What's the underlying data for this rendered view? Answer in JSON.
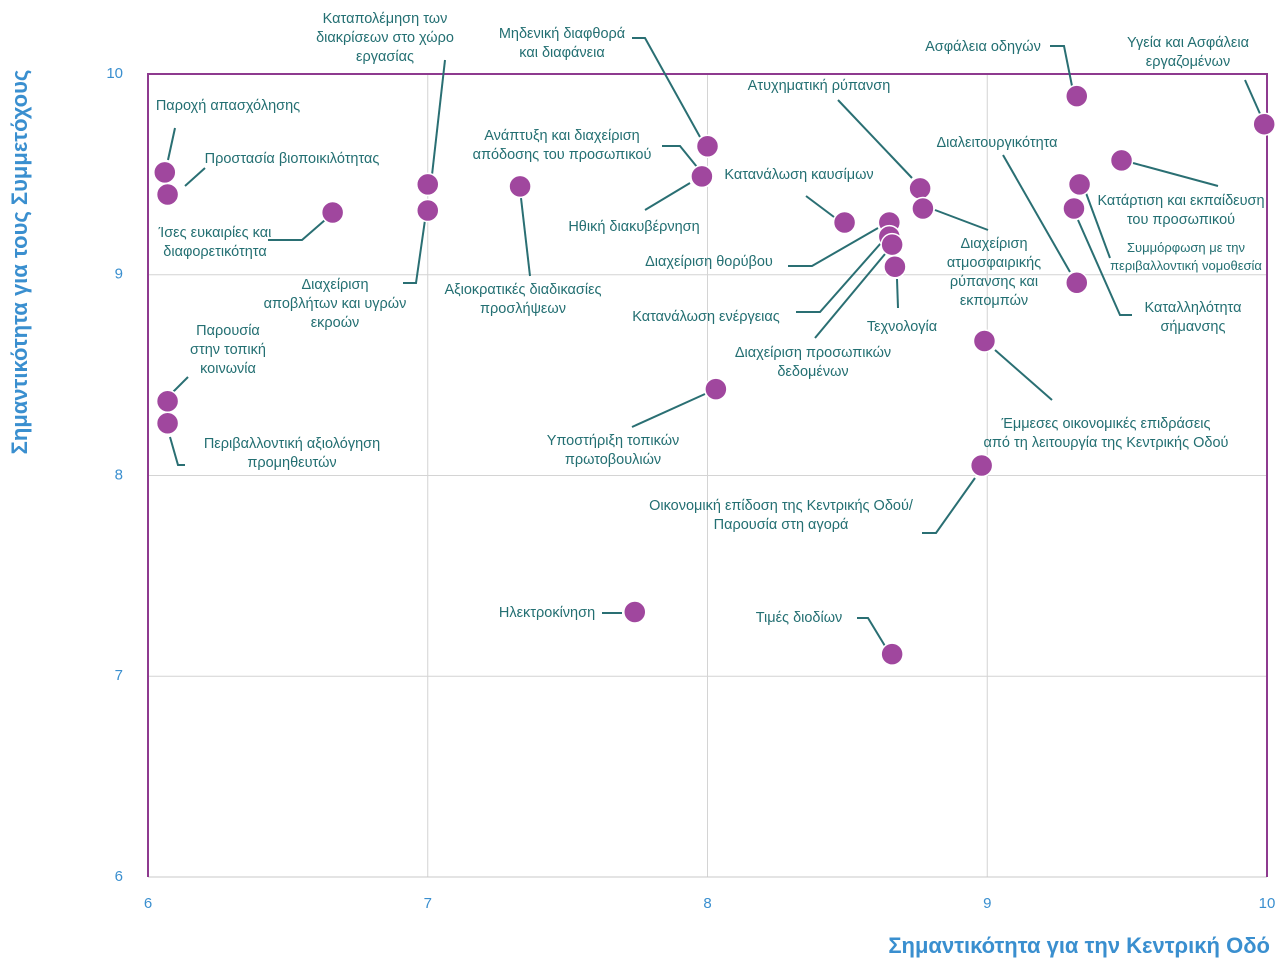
{
  "chart_data": {
    "type": "scatter",
    "xlabel": "Σημαντικότητα για την Κεντρική Οδό",
    "ylabel": "Σημαντικότητα για τους Συμμετόχους",
    "xlim": [
      6,
      10
    ],
    "ylim": [
      6,
      10
    ],
    "xticks": [
      6,
      7,
      8,
      9,
      10
    ],
    "yticks": [
      6,
      7,
      8,
      9,
      10
    ],
    "grid": true,
    "color": "#a0479e",
    "x": [
      6.06,
      6.07,
      6.66,
      7.0,
      7.0,
      7.33,
      8.0,
      7.98,
      7.98,
      8.49,
      8.65,
      8.65,
      8.66,
      8.67,
      8.76,
      8.77,
      9.32,
      9.32,
      9.99,
      9.48,
      9.33,
      9.31,
      8.99,
      8.98,
      8.03,
      7.74,
      8.66,
      6.07,
      6.07
    ],
    "values": [
      9.51,
      9.4,
      9.31,
      9.45,
      9.32,
      9.44,
      9.64,
      9.49,
      9.49,
      9.26,
      9.26,
      9.19,
      9.15,
      9.04,
      9.43,
      9.33,
      8.96,
      9.89,
      9.75,
      9.57,
      9.45,
      9.33,
      8.67,
      8.05,
      8.43,
      7.32,
      7.11,
      8.37,
      8.26
    ],
    "point_labels": [
      "Παροχή απασχόλησης",
      "Προστασία βιοποικιλότητας",
      "Ίσες ευκαιρίες και\nδιαφορετικότητα",
      "Καταπολέμηση των\nδιακρίσεων στο χώρο\nεργασίας",
      "Διαχείριση\nαποβλήτων και υγρών\nεκροών",
      "Αξιοκρατικές διαδικασίες\nπροσλήψεων",
      "Μηδενική διαφθορά\nκαι διαφάνεια",
      "Ανάπτυξη και διαχείριση\nαπόδοσης του προσωπικού",
      "Ηθική διακυβέρνηση",
      "Κατανάλωση καυσίμων",
      "Διαχείριση θορύβου",
      "Κατανάλωση ενέργειας",
      "Διαχείριση προσωπικών\nδεδομένων",
      "Τεχνολογία",
      "Ατυχηματική ρύπανση",
      "Διαχείριση\nατμοσφαιρικής\nρύπανσης και\nεκπομπών",
      "Διαλειτουργικότητα",
      "Ασφάλεια οδηγών",
      "Υγεία και Ασφάλεια\nεργαζομένων",
      "Κατάρτιση και εκπαίδευση\nτου προσωπικού",
      "Συμμόρφωση με την\nπεριβαλλοντική νομοθεσία",
      "Καταλληλότητα\nσήμανσης",
      "Έμμεσες οικονομικές επιδράσεις\nαπό τη λειτουργία της Κεντρικής Οδού",
      "Οικονομική επίδοση της Κεντρικής Οδού/\nΠαρουσία στη αγορά",
      "Υποστήριξη τοπικών\nπρωτοβουλιών",
      "Ηλεκτροκίνηση",
      "Τιμές διοδίων",
      "Παρουσία\nστην τοπική\nκοινωνία",
      "Περιβαλλοντική αξιολόγηση\nπρομηθευτών"
    ]
  }
}
